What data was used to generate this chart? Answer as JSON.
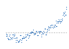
{
  "years": [
    1880,
    1881,
    1882,
    1883,
    1884,
    1885,
    1886,
    1887,
    1888,
    1889,
    1890,
    1891,
    1892,
    1893,
    1894,
    1895,
    1896,
    1897,
    1898,
    1899,
    1900,
    1901,
    1902,
    1903,
    1904,
    1905,
    1906,
    1907,
    1908,
    1909,
    1910,
    1911,
    1912,
    1913,
    1914,
    1915,
    1916,
    1917,
    1918,
    1919,
    1920,
    1921,
    1922,
    1923,
    1924,
    1925,
    1926,
    1927,
    1928,
    1929,
    1930,
    1931,
    1932,
    1933,
    1934,
    1935,
    1936,
    1937,
    1938,
    1939,
    1940,
    1941,
    1942,
    1943,
    1944,
    1945,
    1946,
    1947,
    1948,
    1949,
    1950,
    1951,
    1952,
    1953,
    1954,
    1955,
    1956,
    1957,
    1958,
    1959,
    1960,
    1961,
    1962,
    1963,
    1964,
    1965,
    1966,
    1967,
    1968,
    1969,
    1970,
    1971,
    1972,
    1973,
    1974,
    1975,
    1976,
    1977,
    1978,
    1979,
    1980,
    1981,
    1982,
    1983,
    1984,
    1985,
    1986,
    1987,
    1988,
    1989,
    1990,
    1991,
    1992,
    1993,
    1994,
    1995,
    1996,
    1997,
    1998,
    1999,
    2000,
    2001,
    2002,
    2003,
    2004,
    2005,
    2006,
    2007,
    2008,
    2009,
    2010,
    2011,
    2012,
    2013,
    2014,
    2015,
    2016,
    2017,
    2018,
    2019,
    2020,
    2021,
    2022,
    2023,
    2024
  ],
  "anomalies": [
    -0.16,
    -0.08,
    -0.11,
    -0.16,
    -0.28,
    -0.33,
    -0.31,
    -0.35,
    -0.17,
    -0.1,
    -0.35,
    -0.22,
    -0.27,
    -0.31,
    -0.32,
    -0.23,
    -0.11,
    -0.11,
    -0.27,
    -0.17,
    -0.08,
    -0.15,
    -0.28,
    -0.37,
    -0.47,
    -0.26,
    -0.22,
    -0.39,
    -0.43,
    -0.48,
    -0.43,
    -0.44,
    -0.36,
    -0.35,
    -0.15,
    -0.14,
    -0.36,
    -0.46,
    -0.3,
    -0.27,
    -0.27,
    -0.19,
    -0.28,
    -0.26,
    -0.27,
    -0.22,
    -0.1,
    -0.21,
    -0.2,
    -0.36,
    -0.09,
    -0.08,
    -0.12,
    -0.27,
    -0.13,
    -0.19,
    -0.14,
    -0.02,
    -0.0,
    -0.02,
    0.03,
    0.05,
    0.02,
    0.03,
    0.13,
    0.02,
    -0.1,
    -0.02,
    -0.07,
    -0.08,
    -0.03,
    0.08,
    0.02,
    0.08,
    -0.13,
    -0.14,
    -0.14,
    0.04,
    0.06,
    0.05,
    -0.02,
    0.06,
    0.05,
    0.08,
    -0.2,
    -0.11,
    -0.0,
    -0.02,
    -0.08,
    0.08,
    0.07,
    -0.01,
    0.21,
    0.16,
    -0.09,
    -0.01,
    -0.1,
    0.17,
    0.06,
    0.14,
    0.25,
    0.31,
    0.14,
    0.24,
    0.27,
    0.34,
    0.25,
    0.4,
    0.38,
    0.28,
    0.4,
    0.4,
    0.23,
    0.24,
    0.31,
    0.38,
    0.29,
    0.4,
    0.59,
    0.31,
    0.33,
    0.48,
    0.55,
    0.55,
    0.47,
    0.65,
    0.55,
    0.6,
    0.47,
    0.56,
    0.65,
    0.54,
    0.57,
    0.62,
    0.68,
    0.87,
    1.01,
    0.92,
    0.83,
    0.98,
    1.02,
    0.85,
    0.89,
    1.17,
    1.29
  ],
  "dot_color": "#3a7abf",
  "dot_size": 0.8,
  "bg_color": "#ffffff",
  "plot_bg_color": "#ffffff",
  "grid_color": "#cccccc",
  "dashed_line_y": 0.0,
  "dashed_line_color": "#aaaaaa",
  "ylim": [
    -0.65,
    1.45
  ],
  "xlim": [
    1879,
    2025
  ]
}
